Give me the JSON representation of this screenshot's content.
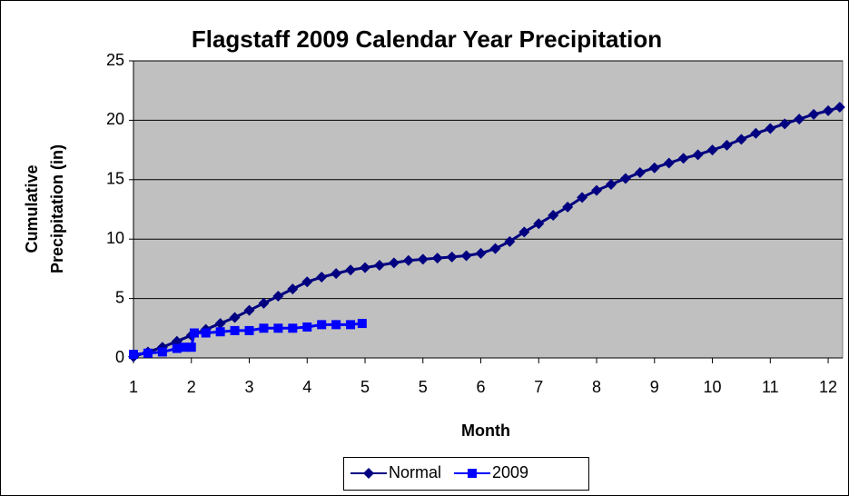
{
  "chart_data": {
    "type": "line",
    "title": "Flagstaff 2009 Calendar Year Precipitation",
    "xlabel": "Month",
    "ylabel": [
      "Cumulative",
      "Precipitation (in)"
    ],
    "xlim": [
      0,
      12.25
    ],
    "xticks": [
      {
        "value": 0,
        "label": "1"
      },
      {
        "value": 1,
        "label": "2"
      },
      {
        "value": 2,
        "label": "3"
      },
      {
        "value": 3,
        "label": "4"
      },
      {
        "value": 4,
        "label": "5"
      },
      {
        "value": 5,
        "label": "5"
      },
      {
        "value": 6,
        "label": "6"
      },
      {
        "value": 7,
        "label": "7"
      },
      {
        "value": 8,
        "label": "8"
      },
      {
        "value": 9,
        "label": "9"
      },
      {
        "value": 10,
        "label": "10"
      },
      {
        "value": 11,
        "label": "11"
      },
      {
        "value": 12,
        "label": "12"
      }
    ],
    "ylim": [
      0,
      25
    ],
    "yticks": [
      0,
      5,
      10,
      15,
      20,
      25
    ],
    "grid": true,
    "legend": "bottom",
    "series": [
      {
        "name": "Normal",
        "color": "#000080",
        "marker": "diamond",
        "x": [
          0,
          0.25,
          0.5,
          0.75,
          1,
          1.25,
          1.5,
          1.75,
          2,
          2.25,
          2.5,
          2.75,
          3,
          3.25,
          3.5,
          3.75,
          4,
          4.25,
          4.5,
          4.75,
          5,
          5.25,
          5.5,
          5.75,
          6,
          6.25,
          6.5,
          6.75,
          7,
          7.25,
          7.5,
          7.75,
          8,
          8.25,
          8.5,
          8.75,
          9,
          9.25,
          9.5,
          9.75,
          10,
          10.25,
          10.5,
          10.75,
          11,
          11.25,
          11.5,
          11.75,
          12,
          12.2
        ],
        "values": [
          0.1,
          0.5,
          0.9,
          1.4,
          1.9,
          2.4,
          2.9,
          3.4,
          4.0,
          4.6,
          5.2,
          5.8,
          6.4,
          6.8,
          7.1,
          7.4,
          7.6,
          7.8,
          8.0,
          8.2,
          8.3,
          8.4,
          8.5,
          8.6,
          8.8,
          9.2,
          9.8,
          10.6,
          11.3,
          12.0,
          12.7,
          13.5,
          14.1,
          14.6,
          15.1,
          15.6,
          16.0,
          16.4,
          16.8,
          17.1,
          17.5,
          17.9,
          18.4,
          18.9,
          19.3,
          19.7,
          20.1,
          20.5,
          20.8,
          21.1
        ]
      },
      {
        "name": "2009",
        "color": "#0000ff",
        "marker": "square",
        "x": [
          0,
          0.25,
          0.5,
          0.75,
          0.875,
          1.0,
          1.05,
          1.25,
          1.5,
          1.75,
          2.0,
          2.25,
          2.5,
          2.75,
          3.0,
          3.25,
          3.5,
          3.75,
          3.95
        ],
        "values": [
          0.3,
          0.4,
          0.5,
          0.8,
          0.9,
          0.9,
          2.1,
          2.1,
          2.2,
          2.3,
          2.3,
          2.5,
          2.5,
          2.5,
          2.6,
          2.8,
          2.8,
          2.8,
          2.9
        ]
      }
    ]
  }
}
